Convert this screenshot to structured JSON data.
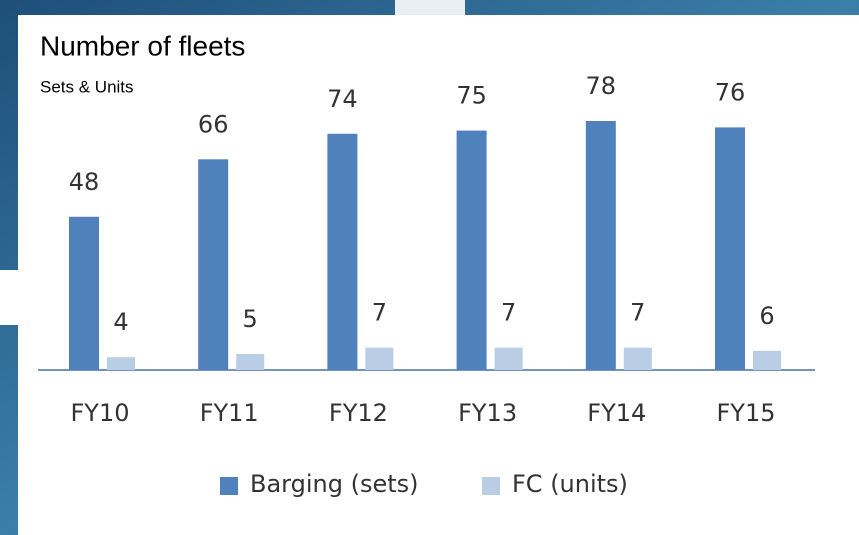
{
  "chart_data": {
    "type": "bar",
    "title": "Number of fleets",
    "subtitle": "Sets & Units",
    "categories": [
      "FY10",
      "FY11",
      "FY12",
      "FY13",
      "FY14",
      "FY15"
    ],
    "series": [
      {
        "name": "Barging (sets)",
        "color": "#4f81bd",
        "values": [
          48,
          66,
          74,
          75,
          78,
          76
        ]
      },
      {
        "name": "FC (units)",
        "color": "#b9cde5",
        "values": [
          4,
          5,
          7,
          7,
          7,
          6
        ]
      }
    ],
    "legend": "bottom",
    "data_labels": true
  }
}
